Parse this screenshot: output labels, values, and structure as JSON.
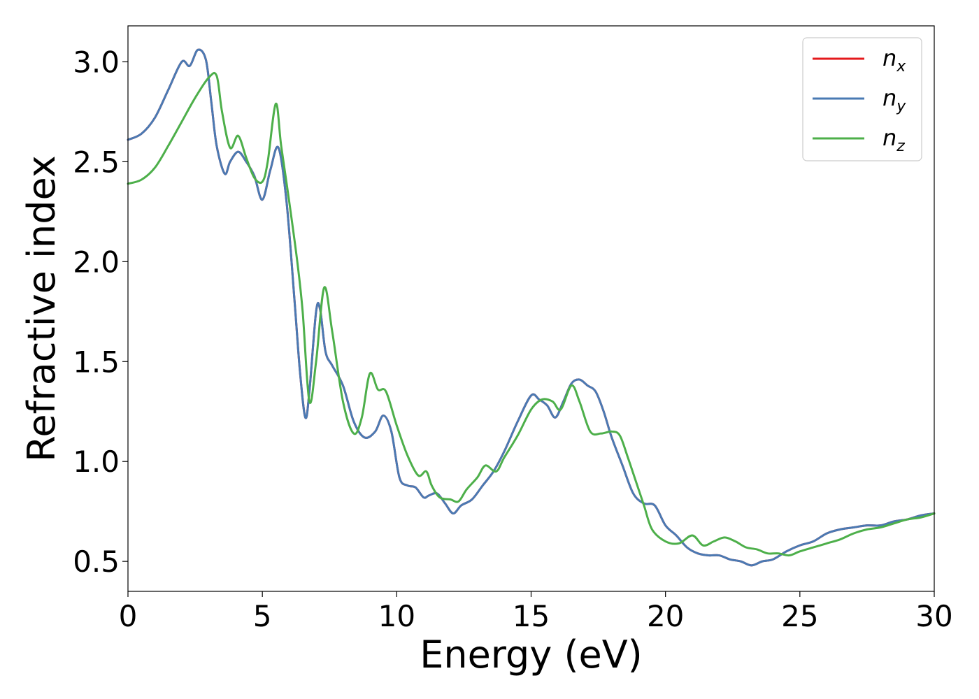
{
  "chart_data": {
    "type": "line",
    "xlabel": "Energy (eV)",
    "ylabel": "Refractive index",
    "xlim": [
      0,
      30
    ],
    "ylim": [
      0.35,
      3.18
    ],
    "xticks": [
      0,
      5,
      10,
      15,
      20,
      25,
      30
    ],
    "xtick_labels": [
      "0",
      "5",
      "10",
      "15",
      "20",
      "25",
      "30"
    ],
    "yticks": [
      0.5,
      1.0,
      1.5,
      2.0,
      2.5,
      3.0
    ],
    "ytick_labels": [
      "0.5",
      "1.0",
      "1.5",
      "2.0",
      "2.5",
      "3.0"
    ],
    "grid": false,
    "legend_position": "top-right",
    "series": [
      {
        "name": "n_x",
        "label_main": "n",
        "label_sub": "x",
        "color": "#e41a1c",
        "x": [
          0,
          0.5,
          1.0,
          1.5,
          2.0,
          2.3,
          2.6,
          2.9,
          3.1,
          3.3,
          3.6,
          3.8,
          4.1,
          4.4,
          4.7,
          5.0,
          5.3,
          5.6,
          5.9,
          6.2,
          6.4,
          6.6,
          6.75,
          7.0,
          7.15,
          7.35,
          7.6,
          8.0,
          8.4,
          8.8,
          9.2,
          9.5,
          9.8,
          10.1,
          10.4,
          10.7,
          11.0,
          11.2,
          11.5,
          11.8,
          12.1,
          12.4,
          12.8,
          13.2,
          13.6,
          14.0,
          14.5,
          15.0,
          15.3,
          15.6,
          15.9,
          16.2,
          16.5,
          16.8,
          17.1,
          17.4,
          17.7,
          18.0,
          18.4,
          18.8,
          19.2,
          19.6,
          20.0,
          20.4,
          20.8,
          21.2,
          21.6,
          22.0,
          22.4,
          22.8,
          23.2,
          23.6,
          24.0,
          24.5,
          25.0,
          25.5,
          26.0,
          26.5,
          27.0,
          27.5,
          28.0,
          28.5,
          29.0,
          29.5,
          30.0
        ],
        "y": [
          2.61,
          2.64,
          2.72,
          2.86,
          3.0,
          2.98,
          3.06,
          3.01,
          2.8,
          2.58,
          2.44,
          2.5,
          2.55,
          2.5,
          2.43,
          2.31,
          2.46,
          2.57,
          2.3,
          1.8,
          1.45,
          1.22,
          1.35,
          1.75,
          1.76,
          1.55,
          1.48,
          1.38,
          1.2,
          1.12,
          1.15,
          1.23,
          1.15,
          0.92,
          0.88,
          0.87,
          0.82,
          0.83,
          0.84,
          0.79,
          0.74,
          0.78,
          0.81,
          0.88,
          0.95,
          1.05,
          1.2,
          1.33,
          1.31,
          1.28,
          1.22,
          1.3,
          1.39,
          1.41,
          1.38,
          1.35,
          1.25,
          1.12,
          0.98,
          0.84,
          0.79,
          0.78,
          0.68,
          0.63,
          0.57,
          0.54,
          0.53,
          0.53,
          0.51,
          0.5,
          0.48,
          0.5,
          0.51,
          0.55,
          0.58,
          0.6,
          0.64,
          0.66,
          0.67,
          0.68,
          0.68,
          0.7,
          0.71,
          0.73,
          0.74
        ]
      },
      {
        "name": "n_y",
        "label_main": "n",
        "label_sub": "y",
        "color": "#4a7ab3",
        "x": [
          0,
          0.5,
          1.0,
          1.5,
          2.0,
          2.3,
          2.6,
          2.9,
          3.1,
          3.3,
          3.6,
          3.8,
          4.1,
          4.4,
          4.7,
          5.0,
          5.3,
          5.6,
          5.9,
          6.2,
          6.4,
          6.6,
          6.75,
          7.0,
          7.15,
          7.35,
          7.6,
          8.0,
          8.4,
          8.8,
          9.2,
          9.5,
          9.8,
          10.1,
          10.4,
          10.7,
          11.0,
          11.2,
          11.5,
          11.8,
          12.1,
          12.4,
          12.8,
          13.2,
          13.6,
          14.0,
          14.5,
          15.0,
          15.3,
          15.6,
          15.9,
          16.2,
          16.5,
          16.8,
          17.1,
          17.4,
          17.7,
          18.0,
          18.4,
          18.8,
          19.2,
          19.6,
          20.0,
          20.4,
          20.8,
          21.2,
          21.6,
          22.0,
          22.4,
          22.8,
          23.2,
          23.6,
          24.0,
          24.5,
          25.0,
          25.5,
          26.0,
          26.5,
          27.0,
          27.5,
          28.0,
          28.5,
          29.0,
          29.5,
          30.0
        ],
        "y": [
          2.61,
          2.64,
          2.72,
          2.86,
          3.0,
          2.98,
          3.06,
          3.01,
          2.8,
          2.58,
          2.44,
          2.5,
          2.55,
          2.5,
          2.43,
          2.31,
          2.46,
          2.57,
          2.3,
          1.8,
          1.45,
          1.22,
          1.35,
          1.75,
          1.76,
          1.55,
          1.48,
          1.38,
          1.2,
          1.12,
          1.15,
          1.23,
          1.15,
          0.92,
          0.88,
          0.87,
          0.82,
          0.83,
          0.84,
          0.79,
          0.74,
          0.78,
          0.81,
          0.88,
          0.95,
          1.05,
          1.2,
          1.33,
          1.31,
          1.28,
          1.22,
          1.3,
          1.39,
          1.41,
          1.38,
          1.35,
          1.25,
          1.12,
          0.98,
          0.84,
          0.79,
          0.78,
          0.68,
          0.63,
          0.57,
          0.54,
          0.53,
          0.53,
          0.51,
          0.5,
          0.48,
          0.5,
          0.51,
          0.55,
          0.58,
          0.6,
          0.64,
          0.66,
          0.67,
          0.68,
          0.68,
          0.7,
          0.71,
          0.73,
          0.74
        ]
      },
      {
        "name": "n_z",
        "label_main": "n",
        "label_sub": "z",
        "color": "#4daf4a",
        "x": [
          0,
          0.5,
          1.0,
          1.5,
          2.0,
          2.5,
          3.0,
          3.3,
          3.5,
          3.8,
          4.1,
          4.4,
          4.7,
          5.0,
          5.2,
          5.5,
          5.7,
          6.0,
          6.3,
          6.5,
          6.75,
          7.0,
          7.3,
          7.6,
          8.0,
          8.4,
          8.7,
          9.0,
          9.3,
          9.6,
          10.0,
          10.4,
          10.8,
          11.1,
          11.3,
          11.6,
          12.0,
          12.3,
          12.6,
          13.0,
          13.3,
          13.7,
          14.0,
          14.5,
          15.0,
          15.4,
          15.8,
          16.1,
          16.5,
          16.8,
          17.2,
          17.6,
          18.0,
          18.3,
          18.6,
          18.9,
          19.2,
          19.5,
          20.0,
          20.5,
          21.0,
          21.4,
          21.8,
          22.2,
          22.6,
          23.0,
          23.4,
          23.8,
          24.2,
          24.6,
          25.0,
          25.5,
          26.0,
          26.5,
          27.0,
          27.5,
          28.0,
          28.5,
          29.0,
          29.5,
          30.0
        ],
        "y": [
          2.39,
          2.41,
          2.47,
          2.58,
          2.7,
          2.82,
          2.92,
          2.93,
          2.75,
          2.57,
          2.63,
          2.52,
          2.42,
          2.4,
          2.5,
          2.79,
          2.58,
          2.3,
          2.0,
          1.75,
          1.3,
          1.5,
          1.87,
          1.65,
          1.3,
          1.14,
          1.22,
          1.44,
          1.36,
          1.35,
          1.18,
          1.03,
          0.93,
          0.95,
          0.88,
          0.82,
          0.81,
          0.8,
          0.86,
          0.92,
          0.98,
          0.95,
          1.02,
          1.13,
          1.26,
          1.31,
          1.3,
          1.26,
          1.38,
          1.3,
          1.15,
          1.14,
          1.15,
          1.13,
          1.02,
          0.9,
          0.78,
          0.66,
          0.6,
          0.59,
          0.63,
          0.58,
          0.6,
          0.62,
          0.6,
          0.57,
          0.56,
          0.54,
          0.54,
          0.53,
          0.55,
          0.57,
          0.59,
          0.61,
          0.64,
          0.66,
          0.67,
          0.69,
          0.71,
          0.72,
          0.74
        ]
      }
    ]
  }
}
